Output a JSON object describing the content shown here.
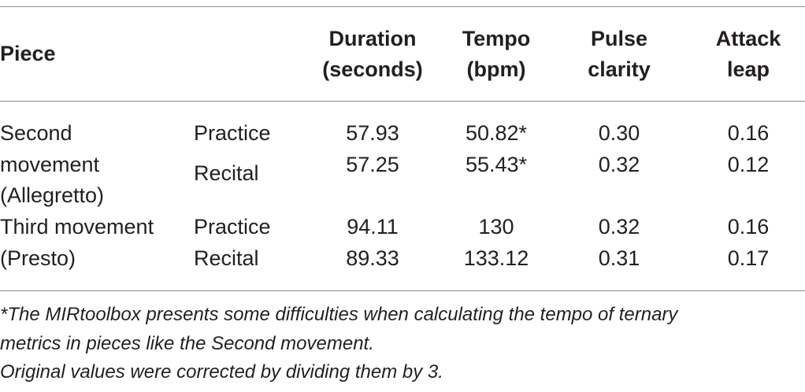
{
  "headers": {
    "piece": "Piece",
    "duration": [
      "Duration",
      "(seconds)"
    ],
    "tempo": [
      "Tempo",
      "(bpm)"
    ],
    "pulse": [
      "Pulse",
      "clarity"
    ],
    "attack": [
      "Attack",
      "leap"
    ]
  },
  "groups": [
    {
      "piece_lines": [
        "Second",
        "movement",
        "(Allegretto)"
      ],
      "rows": [
        {
          "condition": "Practice",
          "duration": "57.93",
          "tempo": "50.82*",
          "pulse": "0.30",
          "attack": "0.16"
        },
        {
          "condition": "Recital",
          "duration": "57.25",
          "tempo": "55.43*",
          "pulse": "0.32",
          "attack": "0.12"
        }
      ]
    },
    {
      "piece_lines": [
        "Third movement",
        "(Presto)"
      ],
      "rows": [
        {
          "condition": "Practice",
          "duration": "94.11",
          "tempo": "130",
          "pulse": "0.32",
          "attack": "0.16"
        },
        {
          "condition": "Recital",
          "duration": "89.33",
          "tempo": "133.12",
          "pulse": "0.31",
          "attack": "0.17"
        }
      ]
    }
  ],
  "footnotes": [
    "*The MIRtoolbox presents some difficulties when calculating the tempo of ternary",
    "metrics in pieces like the Second movement.",
    "Original values were corrected by dividing them by 3."
  ]
}
